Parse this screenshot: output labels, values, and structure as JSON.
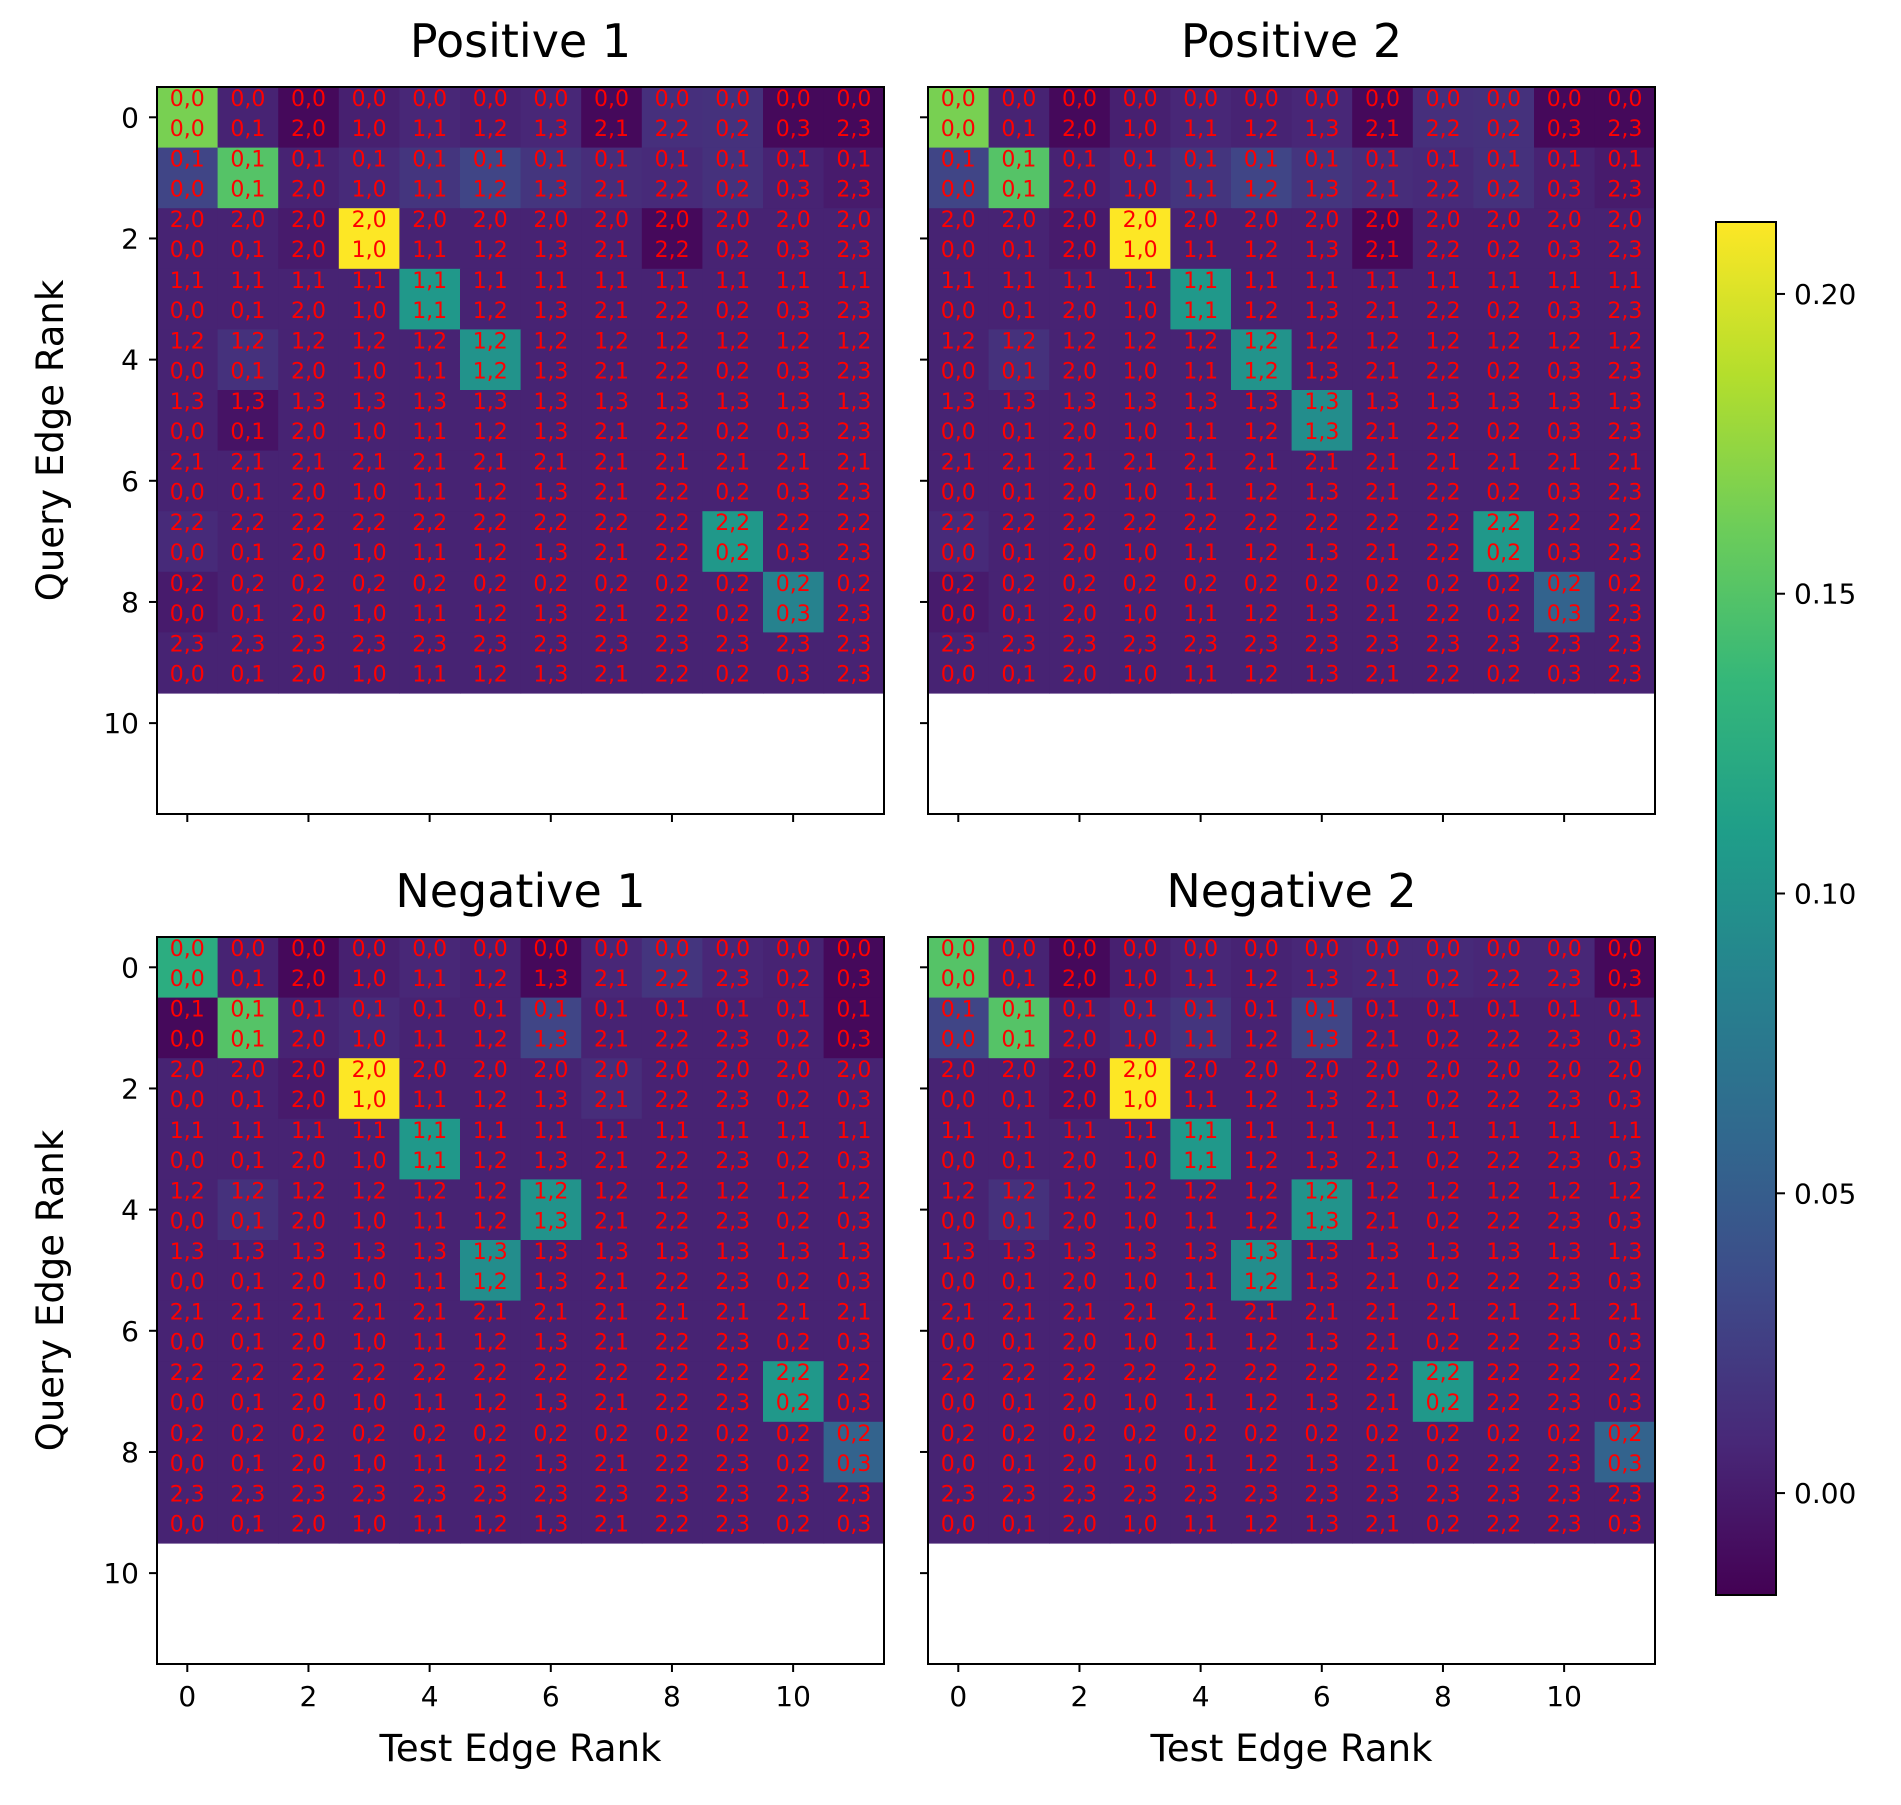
{
  "chart_data": {
    "type": "heatmap",
    "xlabel": "Test Edge Rank",
    "ylabel": "Query Edge Rank",
    "x_ticks": [
      "0",
      "2",
      "4",
      "6",
      "8",
      "10"
    ],
    "y_ticks": [
      "0",
      "2",
      "4",
      "6",
      "8",
      "10"
    ],
    "x_range": [
      -0.5,
      11.5
    ],
    "y_range": [
      -0.5,
      11.5
    ],
    "colormap": "viridis",
    "annotation_color": "#ff0000",
    "colorbar": {
      "vmin": -0.017,
      "vmax": 0.212,
      "ticks": [
        "0.00",
        "0.05",
        "0.10",
        "0.15",
        "0.20"
      ]
    },
    "panels": [
      {
        "title": "Positive 1",
        "query_edges": [
          "0,0",
          "0,1",
          "2,0",
          "1,1",
          "1,2",
          "1,3",
          "2,1",
          "2,2",
          "0,2",
          "2,3"
        ],
        "test_edges": [
          "0,0",
          "0,1",
          "2,0",
          "1,0",
          "1,1",
          "1,2",
          "1,3",
          "2,1",
          "2,2",
          "0,2",
          "0,3",
          "2,3"
        ],
        "values": [
          [
            0.165,
            0.005,
            -0.012,
            0.003,
            0.008,
            0.005,
            0.008,
            -0.012,
            0.014,
            0.015,
            -0.012,
            -0.012
          ],
          [
            0.03,
            0.15,
            0.005,
            0.01,
            0.018,
            0.03,
            0.018,
            0.012,
            0.01,
            0.015,
            0.005,
            0.0
          ],
          [
            0.005,
            0.005,
            0.0,
            0.212,
            0.005,
            0.005,
            0.005,
            0.005,
            -0.012,
            0.005,
            0.005,
            0.005
          ],
          [
            0.005,
            0.005,
            0.005,
            0.005,
            0.105,
            0.005,
            0.005,
            0.005,
            0.005,
            0.005,
            0.005,
            0.005
          ],
          [
            0.005,
            0.015,
            0.005,
            0.005,
            0.005,
            0.1,
            0.005,
            0.005,
            0.005,
            0.005,
            0.005,
            0.005
          ],
          [
            0.005,
            -0.005,
            0.005,
            0.005,
            0.005,
            0.005,
            0.005,
            0.005,
            0.005,
            0.005,
            0.005,
            0.005
          ],
          [
            0.005,
            0.005,
            0.005,
            0.005,
            0.005,
            0.005,
            0.005,
            0.005,
            0.005,
            0.005,
            0.005,
            0.005
          ],
          [
            0.01,
            0.005,
            0.005,
            0.005,
            0.005,
            0.005,
            0.005,
            0.005,
            0.005,
            0.105,
            0.005,
            0.005
          ],
          [
            0.0,
            0.005,
            0.005,
            0.005,
            0.005,
            0.005,
            0.005,
            0.005,
            0.005,
            0.005,
            0.085,
            0.005
          ],
          [
            0.005,
            0.005,
            0.005,
            0.005,
            0.005,
            0.005,
            0.005,
            0.005,
            0.005,
            0.005,
            0.005,
            0.005
          ]
        ]
      },
      {
        "title": "Positive 2",
        "query_edges": [
          "0,0",
          "0,1",
          "2,0",
          "1,1",
          "1,2",
          "1,3",
          "2,1",
          "2,2",
          "0,2",
          "2,3"
        ],
        "test_edges": [
          "0,0",
          "0,1",
          "2,0",
          "1,0",
          "1,1",
          "1,2",
          "1,3",
          "2,1",
          "2,2",
          "0,2",
          "0,3",
          "2,3"
        ],
        "values": [
          [
            0.165,
            0.005,
            -0.012,
            0.003,
            0.008,
            0.005,
            0.008,
            -0.012,
            0.014,
            0.015,
            -0.012,
            -0.012
          ],
          [
            0.03,
            0.15,
            0.005,
            0.01,
            0.018,
            0.03,
            0.018,
            0.012,
            0.01,
            0.015,
            0.005,
            0.0
          ],
          [
            0.005,
            0.005,
            0.0,
            0.212,
            0.005,
            0.005,
            0.005,
            -0.012,
            0.005,
            0.005,
            0.005,
            0.005
          ],
          [
            0.005,
            0.005,
            0.005,
            0.005,
            0.105,
            0.005,
            0.005,
            0.005,
            0.005,
            0.005,
            0.005,
            0.005
          ],
          [
            0.005,
            0.015,
            0.005,
            0.005,
            0.005,
            0.1,
            0.005,
            0.005,
            0.005,
            0.005,
            0.005,
            0.005
          ],
          [
            0.005,
            0.005,
            0.005,
            0.005,
            0.005,
            0.005,
            0.095,
            0.005,
            0.005,
            0.005,
            0.005,
            0.005
          ],
          [
            0.005,
            0.005,
            0.005,
            0.005,
            0.005,
            0.005,
            0.005,
            0.005,
            0.005,
            0.005,
            0.005,
            0.005
          ],
          [
            0.01,
            0.005,
            0.005,
            0.005,
            0.005,
            0.005,
            0.005,
            0.005,
            0.005,
            0.105,
            0.005,
            0.005
          ],
          [
            0.0,
            0.005,
            0.005,
            0.005,
            0.005,
            0.005,
            0.005,
            0.005,
            0.005,
            0.005,
            0.055,
            0.005
          ],
          [
            0.005,
            0.005,
            0.005,
            0.005,
            0.005,
            0.005,
            0.005,
            0.005,
            0.005,
            0.005,
            0.005,
            0.005
          ]
        ]
      },
      {
        "title": "Negative 1",
        "query_edges": [
          "0,0",
          "0,1",
          "2,0",
          "1,1",
          "1,2",
          "1,3",
          "2,1",
          "2,2",
          "0,2",
          "2,3"
        ],
        "test_edges": [
          "0,0",
          "0,1",
          "2,0",
          "1,0",
          "1,1",
          "1,2",
          "1,3",
          "2,1",
          "2,2",
          "2,3",
          "0,2",
          "0,3"
        ],
        "values": [
          [
            0.125,
            0.005,
            -0.012,
            0.003,
            0.008,
            0.005,
            -0.012,
            0.008,
            0.018,
            0.008,
            0.005,
            -0.012
          ],
          [
            -0.012,
            0.15,
            0.005,
            0.01,
            0.005,
            0.005,
            0.03,
            0.005,
            0.005,
            0.005,
            0.005,
            -0.012
          ],
          [
            0.005,
            0.005,
            0.0,
            0.212,
            0.005,
            0.005,
            0.005,
            0.012,
            0.005,
            0.005,
            0.005,
            0.005
          ],
          [
            0.005,
            0.005,
            0.005,
            0.005,
            0.105,
            0.005,
            0.005,
            0.005,
            0.005,
            0.005,
            0.005,
            0.005
          ],
          [
            0.005,
            0.015,
            0.005,
            0.005,
            0.005,
            0.005,
            0.1,
            0.005,
            0.005,
            0.005,
            0.005,
            0.005
          ],
          [
            0.005,
            0.005,
            0.005,
            0.005,
            0.005,
            0.095,
            0.005,
            0.005,
            0.005,
            0.005,
            0.005,
            0.005
          ],
          [
            0.005,
            0.005,
            0.005,
            0.005,
            0.005,
            0.005,
            0.005,
            0.005,
            0.005,
            0.005,
            0.005,
            0.005
          ],
          [
            0.005,
            0.005,
            0.005,
            0.005,
            0.005,
            0.005,
            0.005,
            0.005,
            0.005,
            0.005,
            0.105,
            0.005
          ],
          [
            0.005,
            0.005,
            0.005,
            0.005,
            0.005,
            0.005,
            0.005,
            0.005,
            0.005,
            0.005,
            0.005,
            0.055
          ],
          [
            0.005,
            0.005,
            0.005,
            0.005,
            0.005,
            0.005,
            0.005,
            0.005,
            0.005,
            0.005,
            0.005,
            0.005
          ]
        ]
      },
      {
        "title": "Negative 2",
        "query_edges": [
          "0,0",
          "0,1",
          "2,0",
          "1,1",
          "1,2",
          "1,3",
          "2,1",
          "2,2",
          "0,2",
          "2,3"
        ],
        "test_edges": [
          "0,0",
          "0,1",
          "2,0",
          "1,0",
          "1,1",
          "1,2",
          "1,3",
          "2,1",
          "0,2",
          "2,2",
          "2,3",
          "0,3"
        ],
        "values": [
          [
            0.15,
            0.005,
            -0.012,
            0.003,
            0.008,
            0.005,
            0.008,
            0.01,
            0.01,
            0.008,
            0.008,
            -0.012
          ],
          [
            0.03,
            0.15,
            0.005,
            0.01,
            0.018,
            0.005,
            0.03,
            0.005,
            0.005,
            0.005,
            0.005,
            0.005
          ],
          [
            0.005,
            0.005,
            0.0,
            0.212,
            0.005,
            0.005,
            0.005,
            0.005,
            0.005,
            0.005,
            0.005,
            0.005
          ],
          [
            0.005,
            0.005,
            0.005,
            0.005,
            0.105,
            0.005,
            0.005,
            0.005,
            0.005,
            0.005,
            0.005,
            0.005
          ],
          [
            0.005,
            0.015,
            0.005,
            0.005,
            0.005,
            0.005,
            0.1,
            0.005,
            0.005,
            0.005,
            0.005,
            0.005
          ],
          [
            0.005,
            0.005,
            0.005,
            0.005,
            0.005,
            0.095,
            0.005,
            0.005,
            0.005,
            0.005,
            0.005,
            0.005
          ],
          [
            0.005,
            0.005,
            0.005,
            0.005,
            0.005,
            0.005,
            0.005,
            0.005,
            0.005,
            0.005,
            0.005,
            0.005
          ],
          [
            0.005,
            0.005,
            0.005,
            0.005,
            0.005,
            0.005,
            0.005,
            0.005,
            0.105,
            0.005,
            0.005,
            0.005
          ],
          [
            0.005,
            0.005,
            0.005,
            0.005,
            0.005,
            0.005,
            0.005,
            0.005,
            0.005,
            0.005,
            0.005,
            0.055
          ],
          [
            0.005,
            0.005,
            0.005,
            0.005,
            0.005,
            0.005,
            0.005,
            0.005,
            0.005,
            0.005,
            0.005,
            0.005
          ]
        ]
      }
    ]
  }
}
